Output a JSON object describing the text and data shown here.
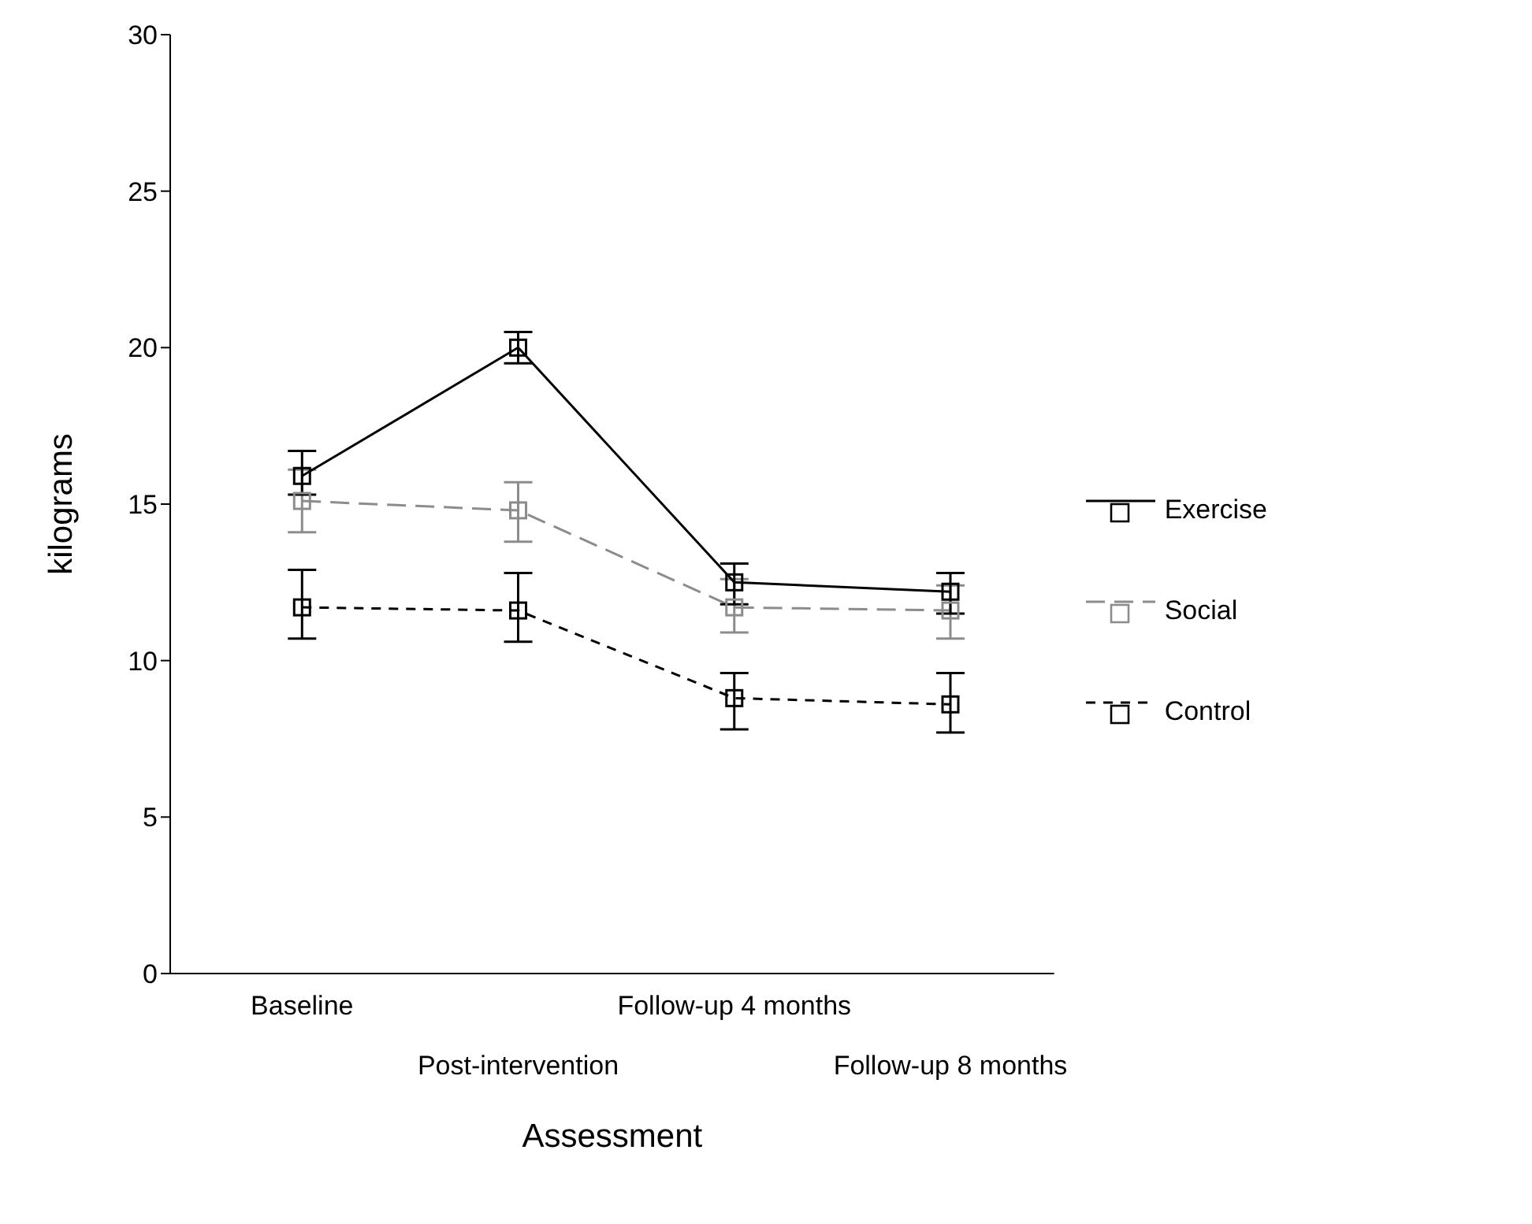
{
  "chart_data": {
    "type": "line",
    "xlabel": "Assessment",
    "ylabel": "kilograms",
    "categories": [
      "Baseline",
      "Post-intervention",
      "Follow-up 4 months",
      "Follow-up 8 months"
    ],
    "ylim": [
      0,
      30
    ],
    "yticks": [
      0,
      5,
      10,
      15,
      20,
      25,
      30
    ],
    "marker": "square",
    "legend": "right",
    "series": [
      {
        "name": "Exercise",
        "color": "#000000",
        "line_style": "solid",
        "values": [
          15.9,
          20.0,
          12.5,
          12.2
        ],
        "errors": [
          [
            15.3,
            16.7
          ],
          [
            19.5,
            20.5
          ],
          [
            11.8,
            13.1
          ],
          [
            11.5,
            12.8
          ]
        ]
      },
      {
        "name": "Social",
        "color": "#8c8c8c",
        "line_style": "dashed",
        "values": [
          15.1,
          14.8,
          11.7,
          11.6
        ],
        "errors": [
          [
            14.1,
            16.1
          ],
          [
            13.8,
            15.7
          ],
          [
            10.9,
            12.6
          ],
          [
            10.7,
            12.4
          ]
        ]
      },
      {
        "name": "Control",
        "color": "#000000",
        "line_style": "dotted",
        "values": [
          11.7,
          11.6,
          8.8,
          8.6
        ],
        "errors": [
          [
            10.7,
            12.9
          ],
          [
            10.6,
            12.8
          ],
          [
            7.8,
            9.6
          ],
          [
            7.7,
            9.6
          ]
        ]
      }
    ]
  }
}
